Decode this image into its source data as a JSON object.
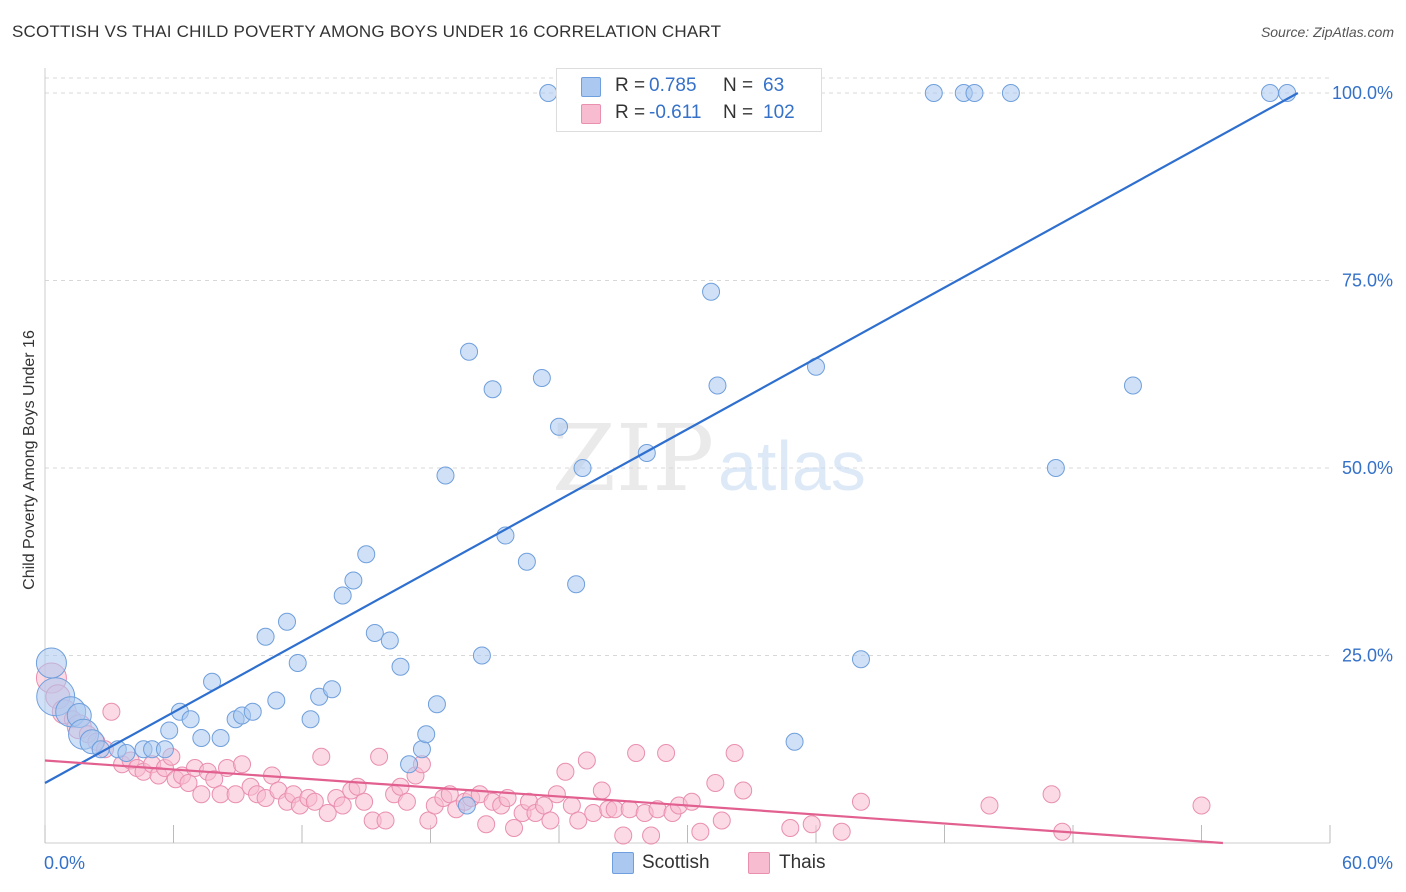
{
  "title": "SCOTTISH VS THAI CHILD POVERTY AMONG BOYS UNDER 16 CORRELATION CHART",
  "source": "Source: ZipAtlas.com",
  "watermark": {
    "zip": "ZIP",
    "atlas": "atlas"
  },
  "colors": {
    "scottish_fill": "#aac8f0",
    "scottish_stroke": "#6f9fdc",
    "scottish_line": "#2e6fcf",
    "thai_fill": "#f7bcd0",
    "thai_stroke": "#e98fb0",
    "thai_line": "#e2608f",
    "tick_text": "#3571c8",
    "grid": "#d8d8d8"
  },
  "legend_top": {
    "rows": [
      {
        "series": "scottish",
        "r_label": "R =",
        "r_value": "0.785",
        "n_label": "N =",
        "n_value": "63"
      },
      {
        "series": "thai",
        "r_label": "R =",
        "r_value": "-0.611",
        "n_label": "N =",
        "n_value": "102"
      }
    ]
  },
  "legend_bottom": {
    "scottish": "Scottish",
    "thai": "Thais"
  },
  "chart_data": {
    "type": "scatter",
    "title": "SCOTTISH VS THAI CHILD POVERTY AMONG BOYS UNDER 16 CORRELATION CHART",
    "xlabel": "",
    "ylabel": "Child Poverty Among Boys Under 16",
    "xlim": [
      0,
      60
    ],
    "ylim": [
      0,
      102
    ],
    "x_tick_labels": [
      "0.0%",
      "60.0%"
    ],
    "y_tick_labels": [
      "25.0%",
      "50.0%",
      "75.0%",
      "100.0%"
    ],
    "y_ticks": [
      25,
      50,
      75,
      100
    ],
    "grid": true,
    "legend_position": "top-center",
    "series": [
      {
        "name": "Scottish",
        "r": 0.785,
        "n": 63,
        "trend": {
          "x": [
            0,
            58.5
          ],
          "y": [
            8,
            100
          ]
        },
        "points": [
          [
            0.3,
            24,
            3
          ],
          [
            0.5,
            19.5,
            4
          ],
          [
            1.2,
            17.5,
            3
          ],
          [
            1.6,
            17,
            2
          ],
          [
            1.8,
            14.5,
            3
          ],
          [
            2.2,
            13.5,
            2
          ],
          [
            2.6,
            12.5,
            1
          ],
          [
            3.4,
            12.5,
            1
          ],
          [
            3.8,
            12,
            1
          ],
          [
            4.6,
            12.5,
            1
          ],
          [
            5.0,
            12.5,
            1
          ],
          [
            5.6,
            12.5,
            1
          ],
          [
            5.8,
            15,
            1
          ],
          [
            6.3,
            17.5,
            1
          ],
          [
            6.8,
            16.5,
            1
          ],
          [
            7.3,
            14,
            1
          ],
          [
            7.8,
            21.5,
            1
          ],
          [
            8.2,
            14,
            1
          ],
          [
            8.9,
            16.5,
            1
          ],
          [
            9.2,
            17,
            1
          ],
          [
            9.7,
            17.5,
            1
          ],
          [
            10.3,
            27.5,
            1
          ],
          [
            10.8,
            19,
            1
          ],
          [
            11.3,
            29.5,
            1
          ],
          [
            11.8,
            24,
            1
          ],
          [
            12.4,
            16.5,
            1
          ],
          [
            12.8,
            19.5,
            1
          ],
          [
            13.4,
            20.5,
            1
          ],
          [
            13.9,
            33,
            1
          ],
          [
            14.4,
            35,
            1
          ],
          [
            15.0,
            38.5,
            1
          ],
          [
            15.4,
            28,
            1
          ],
          [
            16.1,
            27,
            1
          ],
          [
            16.6,
            23.5,
            1
          ],
          [
            17.0,
            10.5,
            1
          ],
          [
            17.6,
            12.5,
            1
          ],
          [
            17.8,
            14.5,
            1
          ],
          [
            18.3,
            18.5,
            1
          ],
          [
            18.7,
            49,
            1
          ],
          [
            19.7,
            5,
            1
          ],
          [
            19.8,
            65.5,
            1
          ],
          [
            20.4,
            25,
            1
          ],
          [
            20.9,
            60.5,
            1
          ],
          [
            21.5,
            41,
            1
          ],
          [
            22.5,
            37.5,
            1
          ],
          [
            23.2,
            62,
            1
          ],
          [
            23.5,
            100,
            1
          ],
          [
            24.0,
            55.5,
            1
          ],
          [
            24.8,
            34.5,
            1
          ],
          [
            25.1,
            50,
            1
          ],
          [
            27.3,
            100,
            1
          ],
          [
            28.1,
            52,
            1
          ],
          [
            31.1,
            73.5,
            1
          ],
          [
            31.4,
            61,
            1
          ],
          [
            35.0,
            13.5,
            1
          ],
          [
            36.0,
            63.5,
            1
          ],
          [
            38.1,
            24.5,
            1
          ],
          [
            41.5,
            100,
            1
          ],
          [
            42.9,
            100,
            1
          ],
          [
            43.4,
            100,
            1
          ],
          [
            45.1,
            100,
            1
          ],
          [
            47.2,
            50,
            1
          ],
          [
            50.8,
            61,
            1
          ],
          [
            57.2,
            100,
            1
          ],
          [
            58.0,
            100,
            1
          ]
        ]
      },
      {
        "name": "Thais",
        "r": -0.611,
        "n": 102,
        "trend": {
          "x": [
            0,
            55
          ],
          "y": [
            11,
            0
          ]
        },
        "points": [
          [
            0.3,
            22,
            3
          ],
          [
            0.6,
            19.5,
            2
          ],
          [
            0.9,
            17.5,
            2
          ],
          [
            1.3,
            16.5,
            1
          ],
          [
            1.6,
            15.5,
            2
          ],
          [
            2.0,
            14.5,
            1
          ],
          [
            2.4,
            13.5,
            1
          ],
          [
            2.8,
            12.5,
            1
          ],
          [
            3.1,
            17.5,
            1
          ],
          [
            3.6,
            10.5,
            1
          ],
          [
            4.0,
            11,
            1
          ],
          [
            4.3,
            10,
            1
          ],
          [
            4.6,
            9.5,
            1
          ],
          [
            5.0,
            10.5,
            1
          ],
          [
            5.3,
            9,
            1
          ],
          [
            5.6,
            10,
            1
          ],
          [
            5.9,
            11.5,
            1
          ],
          [
            6.1,
            8.5,
            1
          ],
          [
            6.4,
            9,
            1
          ],
          [
            6.7,
            8,
            1
          ],
          [
            7.0,
            10,
            1
          ],
          [
            7.3,
            6.5,
            1
          ],
          [
            7.6,
            9.5,
            1
          ],
          [
            7.9,
            8.5,
            1
          ],
          [
            8.2,
            6.5,
            1
          ],
          [
            8.5,
            10,
            1
          ],
          [
            8.9,
            6.5,
            1
          ],
          [
            9.2,
            10.5,
            1
          ],
          [
            9.6,
            7.5,
            1
          ],
          [
            9.9,
            6.5,
            1
          ],
          [
            10.3,
            6,
            1
          ],
          [
            10.6,
            9,
            1
          ],
          [
            10.9,
            7,
            1
          ],
          [
            11.3,
            5.5,
            1
          ],
          [
            11.6,
            6.5,
            1
          ],
          [
            11.9,
            5,
            1
          ],
          [
            12.3,
            6,
            1
          ],
          [
            12.6,
            5.5,
            1
          ],
          [
            12.9,
            11.5,
            1
          ],
          [
            13.2,
            4,
            1
          ],
          [
            13.6,
            6,
            1
          ],
          [
            13.9,
            5,
            1
          ],
          [
            14.3,
            7,
            1
          ],
          [
            14.6,
            7.5,
            1
          ],
          [
            14.9,
            5.5,
            1
          ],
          [
            15.3,
            3,
            1
          ],
          [
            15.6,
            11.5,
            1
          ],
          [
            15.9,
            3,
            1
          ],
          [
            16.3,
            6.5,
            1
          ],
          [
            16.6,
            7.5,
            1
          ],
          [
            16.9,
            5.5,
            1
          ],
          [
            17.3,
            9,
            1
          ],
          [
            17.6,
            10.5,
            1
          ],
          [
            17.9,
            3,
            1
          ],
          [
            18.2,
            5,
            1
          ],
          [
            18.6,
            6,
            1
          ],
          [
            18.9,
            6.5,
            1
          ],
          [
            19.2,
            4.5,
            1
          ],
          [
            19.6,
            5.5,
            1
          ],
          [
            19.9,
            6,
            1
          ],
          [
            20.3,
            6.5,
            1
          ],
          [
            20.6,
            2.5,
            1
          ],
          [
            20.9,
            5.5,
            1
          ],
          [
            21.3,
            5,
            1
          ],
          [
            21.6,
            6,
            1
          ],
          [
            21.9,
            2,
            1
          ],
          [
            22.3,
            4,
            1
          ],
          [
            22.6,
            5.5,
            1
          ],
          [
            22.9,
            4,
            1
          ],
          [
            23.3,
            5,
            1
          ],
          [
            23.6,
            3,
            1
          ],
          [
            23.9,
            6.5,
            1
          ],
          [
            24.3,
            9.5,
            1
          ],
          [
            24.6,
            5,
            1
          ],
          [
            24.9,
            3,
            1
          ],
          [
            25.3,
            11,
            1
          ],
          [
            25.6,
            4,
            1
          ],
          [
            26.0,
            7,
            1
          ],
          [
            26.3,
            4.5,
            1
          ],
          [
            26.6,
            4.5,
            1
          ],
          [
            27.0,
            1,
            1
          ],
          [
            27.3,
            4.5,
            1
          ],
          [
            27.6,
            12,
            1
          ],
          [
            28.0,
            4,
            1
          ],
          [
            28.3,
            1,
            1
          ],
          [
            28.6,
            4.5,
            1
          ],
          [
            29.0,
            12,
            1
          ],
          [
            29.3,
            4,
            1
          ],
          [
            29.6,
            5,
            1
          ],
          [
            30.2,
            5.5,
            1
          ],
          [
            30.6,
            1.5,
            1
          ],
          [
            31.3,
            8,
            1
          ],
          [
            31.6,
            3,
            1
          ],
          [
            32.2,
            12,
            1
          ],
          [
            32.6,
            7,
            1
          ],
          [
            34.8,
            2,
            1
          ],
          [
            35.8,
            2.5,
            1
          ],
          [
            37.2,
            1.5,
            1
          ],
          [
            38.1,
            5.5,
            1
          ],
          [
            44.1,
            5,
            1
          ],
          [
            47.0,
            6.5,
            1
          ],
          [
            47.5,
            1.5,
            1
          ],
          [
            54.0,
            5,
            1
          ]
        ]
      }
    ]
  }
}
